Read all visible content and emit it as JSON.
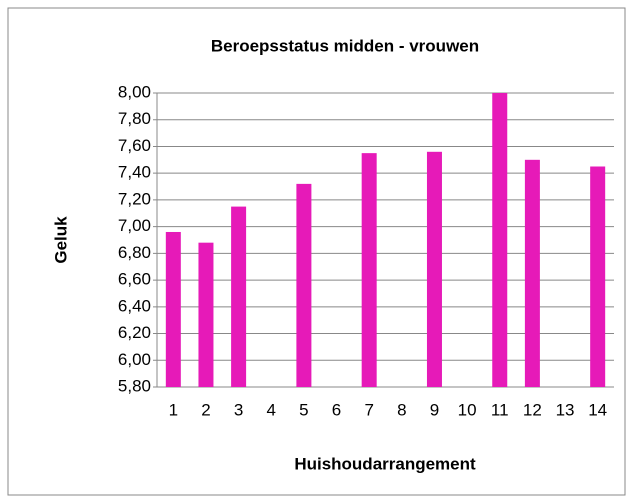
{
  "chart_data": {
    "type": "bar",
    "title": "Beroepsstatus midden - vrouwen",
    "x_label": "Huishoudarrangement",
    "y_label": "Geluk",
    "categories": [
      "1",
      "2",
      "3",
      "4",
      "5",
      "6",
      "7",
      "8",
      "9",
      "10",
      "11",
      "12",
      "13",
      "14"
    ],
    "values": [
      6.96,
      6.88,
      7.15,
      null,
      7.32,
      null,
      7.55,
      null,
      7.56,
      null,
      8.0,
      7.5,
      null,
      7.45
    ],
    "color": "#e61ab8",
    "ylim": [
      5.8,
      8.0
    ],
    "yticks": [
      {
        "value": 5.8,
        "label": "5,80"
      },
      {
        "value": 6.0,
        "label": "6,00"
      },
      {
        "value": 6.2,
        "label": "6,20"
      },
      {
        "value": 6.4,
        "label": "6,40"
      },
      {
        "value": 6.6,
        "label": "6,60"
      },
      {
        "value": 6.8,
        "label": "6,80"
      },
      {
        "value": 7.0,
        "label": "7,00"
      },
      {
        "value": 7.2,
        "label": "7,20"
      },
      {
        "value": 7.4,
        "label": "7,40"
      },
      {
        "value": 7.6,
        "label": "7,60"
      },
      {
        "value": 7.8,
        "label": "7,80"
      },
      {
        "value": 8.0,
        "label": "8,00"
      }
    ],
    "grid": true
  }
}
